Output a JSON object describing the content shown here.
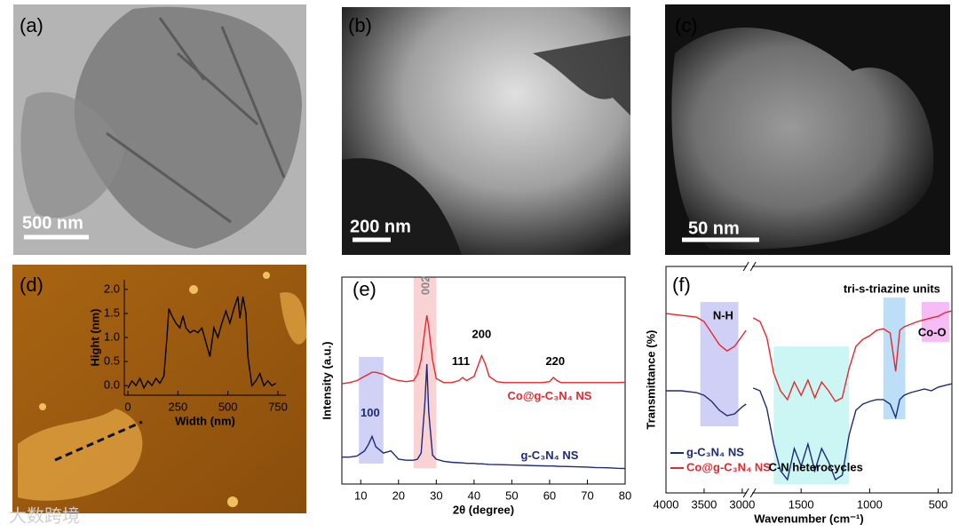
{
  "panels": [
    {
      "label": "(a)",
      "scale_bar": "500 nm"
    },
    {
      "label": "(b)",
      "scale_bar": "200 nm"
    },
    {
      "label": "(c)",
      "scale_bar": "50 nm"
    },
    {
      "label": "(d)"
    },
    {
      "label": "(e)"
    },
    {
      "label": "(f)"
    }
  ],
  "watermark": "大数跨境",
  "chart_data": [
    {
      "type": "line",
      "x_label": "Width (nm)",
      "y_label": "Hight (nm)",
      "color": "#000000",
      "x": [
        0,
        20,
        40,
        60,
        80,
        100,
        120,
        140,
        160,
        180,
        195,
        205,
        220,
        240,
        260,
        275,
        290,
        310,
        330,
        350,
        370,
        390,
        410,
        430,
        450,
        470,
        490,
        510,
        530,
        550,
        560,
        575,
        590,
        600,
        620,
        640,
        660,
        680,
        700,
        720,
        740
      ],
      "values": [
        -0.05,
        0.1,
        0.0,
        0.15,
        -0.05,
        0.1,
        0.0,
        0.15,
        0.05,
        0.2,
        1.0,
        1.6,
        1.45,
        1.3,
        1.2,
        1.45,
        1.2,
        1.1,
        1.15,
        1.1,
        1.2,
        0.9,
        0.6,
        1.2,
        1.0,
        1.3,
        1.55,
        1.3,
        1.6,
        1.85,
        1.4,
        1.85,
        1.5,
        0.6,
        0.0,
        0.1,
        0.25,
        0.0,
        0.1,
        0.0,
        0.05
      ],
      "xlim": [
        -18,
        790
      ],
      "ylim": [
        -0.2,
        2.2
      ],
      "xticks": [
        0,
        250,
        500,
        750
      ],
      "yticks": [
        {
          "value": 0,
          "label": "0.0"
        },
        0.5,
        {
          "value": 1,
          "label": "1.0"
        },
        1.5,
        {
          "value": 2,
          "label": "2.0"
        }
      ]
    },
    {
      "type": "line",
      "x_label": "2θ (degree)",
      "y_label": "Intensity (a.u.)",
      "legend": "inline",
      "x": [
        5,
        7,
        9,
        11,
        12,
        13,
        14,
        16,
        18,
        20,
        22,
        24,
        25,
        26,
        27,
        27.5,
        28,
        29,
        30,
        32,
        34,
        36,
        37,
        38,
        40,
        41,
        42,
        43,
        44,
        46,
        48,
        50,
        52,
        54,
        56,
        58,
        60,
        61,
        62,
        63,
        64,
        66,
        68,
        70,
        72,
        74,
        76,
        78,
        80
      ],
      "series": [
        {
          "name": "Co@g-C₃N₄ NS",
          "color": "#e8262b",
          "values": [
            48.5,
            49,
            50,
            52,
            53,
            54,
            54,
            53,
            51,
            50,
            49.5,
            50,
            53,
            60,
            75,
            81.5,
            76,
            60,
            51,
            49,
            49,
            50,
            51.5,
            50,
            52,
            57,
            62,
            58,
            52,
            49.5,
            49,
            49,
            49,
            49,
            49,
            49,
            49.5,
            51.5,
            50,
            49,
            49,
            49,
            49,
            49,
            49,
            49,
            49,
            49,
            49.2
          ]
        },
        {
          "name": "g-C₃N₄ NS",
          "color": "#1c2a7a",
          "values": [
            13,
            13,
            13.5,
            16,
            19,
            23,
            18,
            15,
            16,
            12,
            11.5,
            11.5,
            12,
            15,
            40,
            58,
            35,
            14,
            12,
            11,
            10.5,
            10.3,
            10.2,
            10,
            10,
            9.8,
            9.8,
            9.6,
            9.5,
            9.4,
            9.3,
            9.2,
            9.1,
            9,
            8.9,
            8.8,
            8.7,
            8.7,
            8.6,
            8.5,
            8.5,
            8.4,
            8.3,
            8.2,
            8,
            7.9,
            7.8,
            7.6,
            7.5
          ]
        }
      ],
      "xlim": [
        5,
        80
      ],
      "ylim": [
        0,
        100
      ],
      "xticks": [
        10,
        20,
        30,
        40,
        50,
        60,
        70,
        80
      ],
      "highlights": [
        {
          "x": [
            9.5,
            16
          ],
          "y": [
            9.9,
            61.4
          ],
          "color": "#b3b3f0"
        },
        {
          "x": [
            24,
            30
          ],
          "y": [
            7.7,
            100
          ],
          "color": "#f5b5b5"
        }
      ],
      "annotations": [
        {
          "text": "100",
          "x": 12.5,
          "y": 34,
          "color": "#1c2a7a"
        },
        {
          "text": "002",
          "x": 27.4,
          "y": 96,
          "color": "#888888",
          "rotate": -90
        },
        {
          "text": "111",
          "x": 36.5,
          "y": 59,
          "color": "#000000"
        },
        {
          "text": "200",
          "x": 42,
          "y": 72,
          "color": "#000000"
        },
        {
          "text": "220",
          "x": 61.5,
          "y": 59,
          "color": "#000000"
        }
      ]
    },
    {
      "type": "line",
      "x_label": "Wavenumber (cm⁻¹)",
      "y_label": "Transmittance (%)",
      "legend": "lower left",
      "x": [
        4000,
        3800,
        3600,
        3500,
        3400,
        3300,
        3200,
        3100,
        3000,
        2950,
        2400,
        1850,
        1800,
        1750,
        1700,
        1650,
        1600,
        1550,
        1500,
        1450,
        1400,
        1350,
        1300,
        1250,
        1200,
        1150,
        1100,
        1050,
        1000,
        950,
        900,
        850,
        810,
        780,
        750,
        700,
        650,
        600,
        550,
        500,
        450,
        400
      ],
      "series": [
        {
          "name": "g-C₃N₄ NS",
          "color": "#1c2a7a",
          "values": [
            45.1,
            45.1,
            44.3,
            43.1,
            40.4,
            36.5,
            34.1,
            34.9,
            38,
            39.2,
            null,
            46.3,
            45.1,
            37.3,
            21.6,
            9.8,
            5.9,
            19.6,
            11.8,
            21.6,
            9.8,
            19.6,
            13.7,
            5.9,
            7.8,
            25.5,
            36.5,
            39.2,
            40.4,
            41.2,
            41.2,
            39.2,
            33.3,
            41.2,
            43.1,
            44.3,
            45.1,
            45.9,
            45.1,
            46.7,
            47.5,
            48.2
          ]
        },
        {
          "name": "Co@g-C₃N₄ NS",
          "color": "#e8262b",
          "values": [
            79.2,
            78.4,
            77.6,
            75.7,
            70.6,
            65.5,
            62.7,
            64.7,
            69.4,
            71.8,
            null,
            77.3,
            75.7,
            68.6,
            52.9,
            45.1,
            41.2,
            49,
            43.1,
            49.8,
            42,
            49,
            45.1,
            40.4,
            42,
            54.9,
            64.7,
            67.8,
            69.4,
            71.8,
            72.5,
            70.6,
            53.7,
            71.8,
            73.3,
            74.5,
            75.7,
            76.5,
            77.3,
            78,
            79.6,
            80.4
          ]
        }
      ],
      "xlim": [
        4000,
        400
      ],
      "x_break": [
        2950,
        1850
      ],
      "ylim": [
        0,
        100
      ],
      "xticks": [
        4000,
        3500,
        3000,
        1500,
        1000,
        500
      ],
      "highlights": [
        {
          "x": [
            3550,
            3050
          ],
          "y": [
            29.4,
            84.3
          ],
          "color": "#b0b0f0"
        },
        {
          "x": [
            1700,
            1150
          ],
          "y": [
            3.9,
            64.7
          ],
          "color": "#a8f0ec"
        },
        {
          "x": [
            900,
            740
          ],
          "y": [
            32.5,
            86.3
          ],
          "color": "#90c8f0"
        },
        {
          "x": [
            620,
            420
          ],
          "y": [
            66.7,
            84.3
          ],
          "color": "#f090f0"
        }
      ],
      "annotations": [
        {
          "text": "N-H",
          "x": 3250,
          "y": 78,
          "color": "#000000"
        },
        {
          "text": "tri-s-triazine units",
          "x": 838,
          "y": 89.8,
          "color": "#000000"
        },
        {
          "text": "Co-O",
          "x": 544,
          "y": 70.6,
          "color": "#000000"
        },
        {
          "text": "C-N heterocycles",
          "x": 1393,
          "y": 11,
          "color": "#000000"
        }
      ]
    }
  ]
}
